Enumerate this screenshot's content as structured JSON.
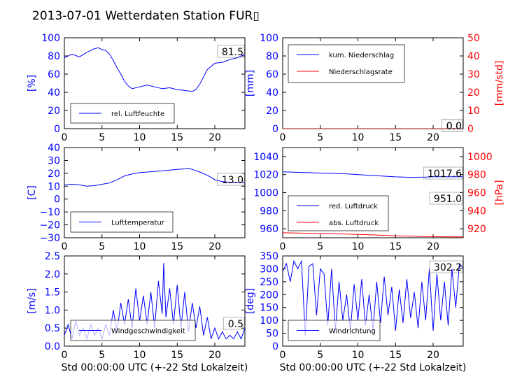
{
  "title": "2013-07-01 Wetterdaten Station FUR▯",
  "xlabel": "Std 00:00:00 UTC (+-22 Std Lokalzeit)",
  "colors": {
    "blue": "#0000ff",
    "red": "#ff0000",
    "black": "#000000"
  },
  "chart_data": [
    {
      "id": "humidity",
      "type": "line",
      "ylabel": "[%]",
      "xlim": [
        0,
        24
      ],
      "ylim": [
        0,
        100
      ],
      "xticks": [
        "0",
        "5",
        "10",
        "15",
        "20"
      ],
      "yticks": [
        "0",
        "20",
        "40",
        "60",
        "80",
        "100"
      ],
      "annotation": "81.5",
      "legend": [
        "rel. Luftfeuchte"
      ],
      "series": [
        {
          "name": "rel. Luftfeuchte",
          "color": "blue",
          "x": [
            0,
            1,
            2,
            3,
            4,
            4.5,
            5,
            5.5,
            6,
            6.5,
            7,
            7.5,
            8,
            8.5,
            9,
            10,
            11,
            12,
            13,
            14,
            15,
            16,
            17,
            17.5,
            18,
            18.5,
            19,
            20,
            21,
            22,
            23,
            24
          ],
          "y": [
            78,
            82,
            79,
            84,
            88,
            89,
            87,
            86,
            82,
            75,
            67,
            60,
            52,
            47,
            44,
            46,
            48,
            46,
            44,
            45,
            43,
            42,
            41,
            43,
            49,
            57,
            65,
            72,
            73,
            76,
            78,
            82
          ]
        }
      ]
    },
    {
      "id": "precipitation",
      "type": "line",
      "ylabel": "[mm]",
      "y2label": "[mm/std]",
      "xlim": [
        0,
        24
      ],
      "ylim": [
        0,
        100
      ],
      "y2lim": [
        0,
        50
      ],
      "xticks": [
        "0",
        "5",
        "10",
        "15",
        "20"
      ],
      "yticks": [
        "0",
        "20",
        "40",
        "60",
        "80",
        "100"
      ],
      "y2ticks": [
        "0",
        "10",
        "20",
        "30",
        "40",
        "50"
      ],
      "annotations": [
        "0.0",
        "0.0"
      ],
      "legend": [
        "kum. Niederschlag",
        "Niederschlagsrate"
      ],
      "series": [
        {
          "name": "kum. Niederschlag",
          "color": "blue",
          "x": [
            0,
            24
          ],
          "y": [
            0,
            0
          ]
        },
        {
          "name": "Niederschlagsrate",
          "color": "red",
          "x": [
            0,
            24
          ],
          "y": [
            0,
            0
          ]
        }
      ]
    },
    {
      "id": "temperature",
      "type": "line",
      "ylabel": "[C]",
      "xlim": [
        0,
        24
      ],
      "ylim": [
        -30,
        40
      ],
      "xticks": [
        "0",
        "5",
        "10",
        "15",
        "20"
      ],
      "yticks": [
        "−30",
        "−20",
        "−10",
        "0",
        "10",
        "20",
        "30",
        "40"
      ],
      "annotation": "13.0",
      "legend": [
        "Lufttemperatur"
      ],
      "series": [
        {
          "name": "Lufttemperatur",
          "color": "blue",
          "x": [
            0,
            1,
            2,
            3,
            4,
            5,
            6,
            7,
            8,
            9,
            10,
            11,
            12,
            13,
            14,
            15,
            16,
            16.5,
            17,
            18,
            19,
            20,
            21,
            22,
            23,
            24
          ],
          "y": [
            11,
            11.5,
            11,
            10,
            10.5,
            11.5,
            12.5,
            15,
            18,
            19.5,
            20.5,
            21,
            21.5,
            22,
            22.5,
            23,
            23.5,
            24,
            23,
            21,
            18.5,
            15,
            13.5,
            13,
            13,
            13
          ]
        }
      ]
    },
    {
      "id": "pressure",
      "type": "line",
      "y2label": "[hPa]",
      "xlim": [
        0,
        24
      ],
      "ylim": [
        950,
        1050
      ],
      "y2lim": [
        910,
        1010
      ],
      "xticks": [
        "0",
        "5",
        "10",
        "15",
        "20"
      ],
      "yticks": [
        "960",
        "980",
        "1000",
        "1020",
        "1040"
      ],
      "y2ticks": [
        "920",
        "940",
        "960",
        "980",
        "1000"
      ],
      "annotations": [
        "1017.6",
        "951.0"
      ],
      "legend": [
        "red. Luftdruck",
        "abs. Luftdruck"
      ],
      "series": [
        {
          "name": "red. Luftdruck",
          "color": "blue",
          "x": [
            0,
            4,
            8,
            12,
            15,
            17,
            19,
            20,
            22,
            24
          ],
          "y": [
            1023,
            1022,
            1021,
            1019,
            1017.5,
            1017,
            1017.2,
            1017.6,
            1017.6,
            1017.6
          ]
        },
        {
          "name": "abs. Luftdruck",
          "color": "red",
          "x": [
            0,
            4,
            8,
            12,
            15,
            17,
            20,
            24
          ],
          "y": [
            955.5,
            955,
            954.2,
            953.2,
            952.2,
            951.8,
            951.2,
            951
          ]
        }
      ]
    },
    {
      "id": "windspeed",
      "type": "line",
      "ylabel": "[m/s]",
      "xlabel": "Std 00:00:00 UTC (+-22 Std Lokalzeit)",
      "xlim": [
        0,
        24
      ],
      "ylim": [
        0,
        2.5
      ],
      "xticks": [
        "0",
        "5",
        "10",
        "15",
        "20"
      ],
      "yticks": [
        "0.0",
        "0.5",
        "1.0",
        "1.5",
        "2.0",
        "2.5"
      ],
      "annotation": "0.5",
      "legend": [
        "Windgeschwindigkeit"
      ],
      "series": [
        {
          "name": "Windgeschwindigkeit",
          "color": "blue",
          "x": [
            0,
            0.5,
            1,
            1.5,
            2,
            2.5,
            3,
            3.5,
            4,
            4.5,
            5,
            5.5,
            6,
            6.5,
            7,
            7.5,
            8,
            8.5,
            9,
            9.5,
            10,
            10.5,
            11,
            11.5,
            12,
            12.5,
            13,
            13.2,
            13.5,
            14,
            14.5,
            15,
            15.5,
            16,
            16.5,
            17,
            17.5,
            18,
            18.5,
            19,
            19.5,
            20,
            20.5,
            21,
            21.5,
            22,
            22.5,
            23,
            23.5,
            24
          ],
          "y": [
            0.3,
            0.6,
            0.2,
            0.7,
            0.3,
            0.5,
            0.2,
            0.6,
            0.3,
            0.5,
            0.2,
            0.6,
            0.3,
            1.0,
            0.4,
            1.2,
            0.6,
            1.3,
            0.5,
            1.6,
            0.7,
            1.4,
            0.6,
            1.5,
            0.5,
            1.8,
            0.9,
            2.3,
            0.8,
            1.6,
            0.6,
            1.7,
            0.5,
            1.5,
            0.4,
            1.2,
            0.5,
            1.1,
            0.3,
            0.8,
            0.2,
            0.5,
            0.2,
            0.4,
            0.2,
            0.3,
            0.2,
            0.4,
            0.2,
            0.5
          ]
        }
      ]
    },
    {
      "id": "winddirection",
      "type": "line",
      "ylabel": "[deg]",
      "xlabel": "Std 00:00:00 UTC (+-22 Std Lokalzeit)",
      "xlim": [
        0,
        24
      ],
      "ylim": [
        0,
        350
      ],
      "xticks": [
        "0",
        "5",
        "10",
        "15",
        "20"
      ],
      "yticks": [
        "0",
        "50",
        "100",
        "150",
        "200",
        "250",
        "300",
        "350"
      ],
      "annotation": "302.2",
      "legend": [
        "Windrichtung"
      ],
      "series": [
        {
          "name": "Windrichtung",
          "color": "blue",
          "x": [
            0,
            0.5,
            1,
            1.5,
            2,
            2.5,
            3,
            3.5,
            4,
            4.5,
            5,
            5.5,
            6,
            6.5,
            7,
            7.5,
            8,
            8.5,
            9,
            9.5,
            10,
            10.5,
            11,
            11.5,
            12,
            12.5,
            13,
            13.5,
            14,
            14.5,
            15,
            15.5,
            16,
            16.5,
            17,
            17.5,
            18,
            18.5,
            19,
            19.5,
            20,
            20.5,
            21,
            21.5,
            22,
            22.5,
            23,
            23.5,
            24
          ],
          "y": [
            290,
            320,
            250,
            330,
            300,
            330,
            40,
            310,
            320,
            120,
            300,
            280,
            80,
            300,
            60,
            250,
            100,
            200,
            60,
            240,
            100,
            260,
            80,
            200,
            60,
            250,
            90,
            270,
            120,
            230,
            60,
            220,
            90,
            260,
            110,
            210,
            70,
            250,
            100,
            300,
            60,
            280,
            100,
            250,
            80,
            300,
            150,
            320,
            302
          ]
        }
      ]
    }
  ]
}
